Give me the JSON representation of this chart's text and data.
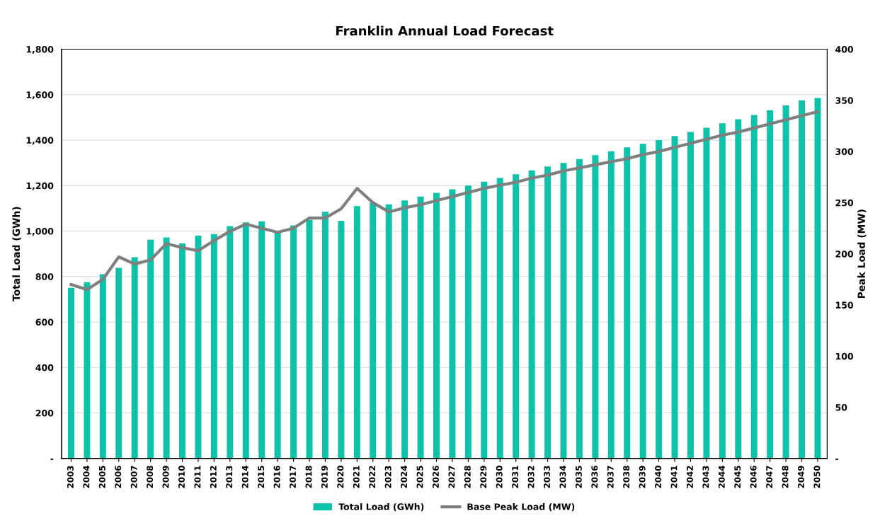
{
  "chart_data": {
    "type": "bar",
    "title": "Franklin Annual Load Forecast",
    "ylabel": "Total Load (GWh)",
    "y2label": "Peak Load (MW)",
    "categories": [
      "2003",
      "2004",
      "2005",
      "2006",
      "2007",
      "2008",
      "2009",
      "2010",
      "2011",
      "2012",
      "2013",
      "2014",
      "2015",
      "2016",
      "2017",
      "2018",
      "2019",
      "2020",
      "2021",
      "2022",
      "2023",
      "2024",
      "2025",
      "2026",
      "2027",
      "2028",
      "2029",
      "2030",
      "2031",
      "2032",
      "2033",
      "2034",
      "2035",
      "2036",
      "2037",
      "2038",
      "2039",
      "2040",
      "2041",
      "2042",
      "2043",
      "2044",
      "2045",
      "2046",
      "2047",
      "2048",
      "2049",
      "2050"
    ],
    "series": [
      {
        "name": "Total Load (GWh)",
        "color": "#0cc2a8",
        "values": [
          750,
          775,
          810,
          838,
          885,
          962,
          972,
          946,
          980,
          987,
          1022,
          1038,
          1043,
          997,
          1025,
          1050,
          1085,
          1045,
          1110,
          1125,
          1118,
          1135,
          1152,
          1168,
          1184,
          1200,
          1217,
          1234,
          1250,
          1267,
          1284,
          1300,
          1317,
          1334,
          1351,
          1368,
          1384,
          1400,
          1418,
          1436,
          1455,
          1474,
          1492,
          1511,
          1532,
          1553,
          1575,
          1585
        ]
      },
      {
        "name": "Base Peak Load (MW)",
        "type": "line",
        "axis": "y2",
        "color": "#7f7f7f",
        "values": [
          170,
          165,
          175,
          197,
          190,
          194,
          210,
          206,
          203,
          213,
          222,
          229,
          225,
          221,
          225,
          235,
          235,
          244,
          264,
          250,
          241,
          245,
          248,
          252,
          256,
          260,
          264,
          267,
          270,
          274,
          277,
          281,
          284,
          287,
          290,
          293,
          297,
          300,
          304,
          308,
          312,
          316,
          319,
          323,
          327,
          331,
          335,
          339
        ]
      }
    ],
    "ylim": [
      0,
      1800
    ],
    "yticks": [
      {
        "value": 0,
        "label": "-"
      },
      200,
      400,
      600,
      800,
      {
        "value": 1000,
        "label": "1,000"
      },
      {
        "value": 1200,
        "label": "1,200"
      },
      {
        "value": 1400,
        "label": "1,400"
      },
      {
        "value": 1600,
        "label": "1,600"
      },
      {
        "value": 1800,
        "label": "1,800"
      }
    ],
    "y2lim": [
      0,
      400
    ],
    "y2ticks": [
      {
        "value": 0,
        "label": "-"
      },
      50,
      100,
      150,
      200,
      250,
      300,
      350,
      400
    ],
    "grid": "y",
    "legend": "bottom",
    "marker": "none",
    "line_style": "solid"
  }
}
